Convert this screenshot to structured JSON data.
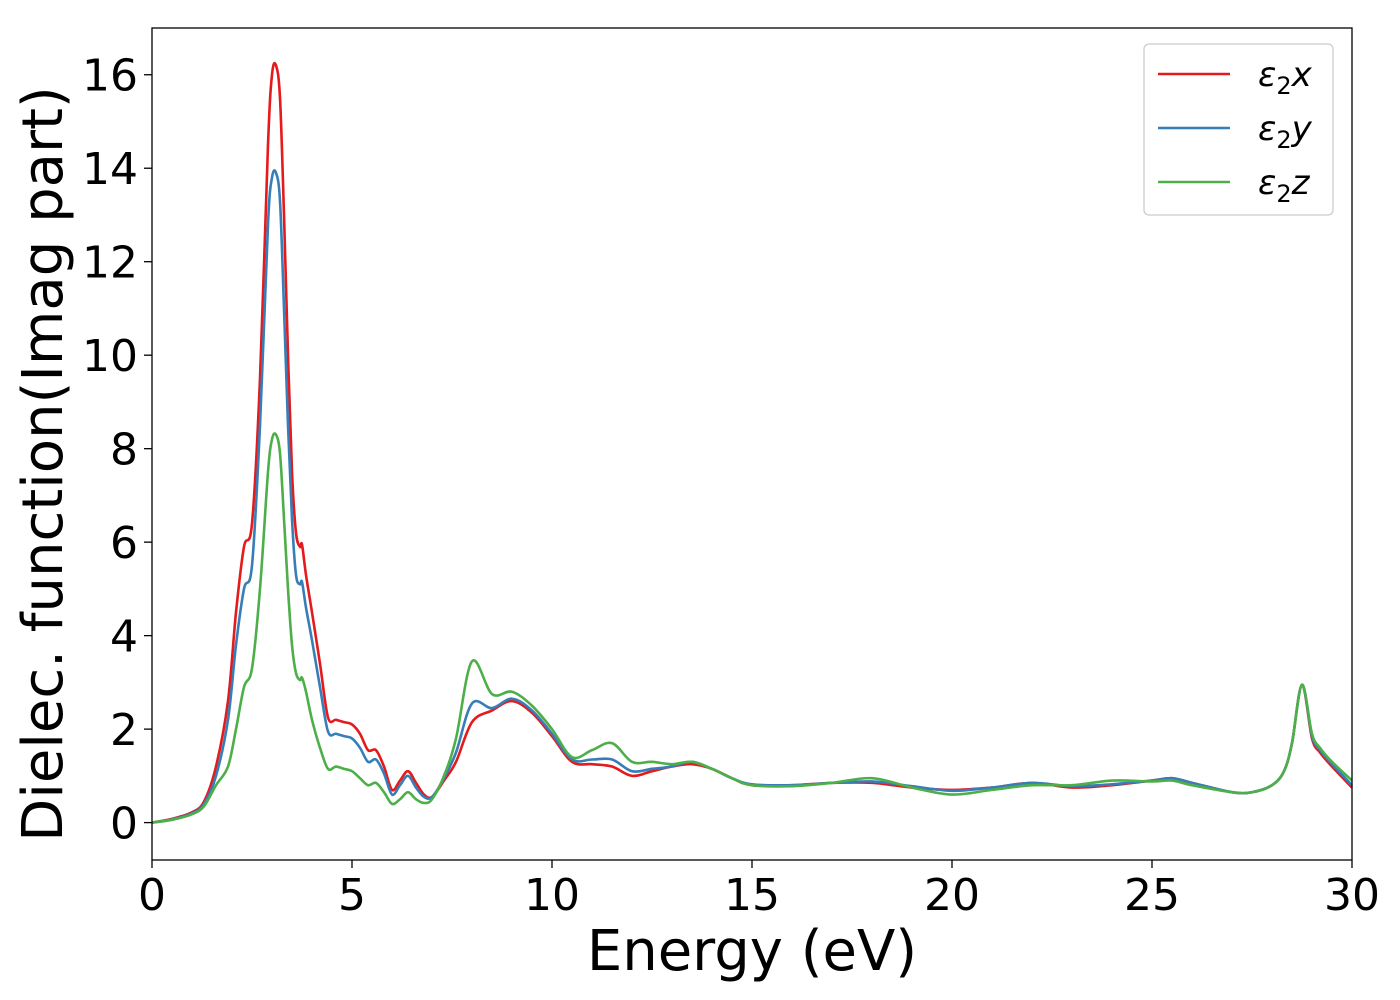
{
  "chart_data": {
    "type": "line",
    "title": "",
    "xlabel": "Energy (eV)",
    "ylabel": "Dielec. function(Imag part)",
    "xlim": [
      0,
      30
    ],
    "ylim": [
      -0.8,
      17
    ],
    "xticks": [
      0,
      5,
      10,
      15,
      20,
      25,
      30
    ],
    "yticks": [
      0,
      2,
      4,
      6,
      8,
      10,
      12,
      14,
      16
    ],
    "grid": false,
    "legend_position": "top-right",
    "series": [
      {
        "name": "ε2x",
        "legend_base": "ε",
        "legend_sub": "2",
        "legend_var": "x",
        "color": "#e41a1c",
        "x": [
          0,
          0.5,
          1,
          1.3,
          1.6,
          1.9,
          2.1,
          2.3,
          2.5,
          2.7,
          2.9,
          3.0,
          3.1,
          3.2,
          3.3,
          3.4,
          3.5,
          3.6,
          3.7,
          3.75,
          3.85,
          4.0,
          4.2,
          4.4,
          4.6,
          4.8,
          5.0,
          5.2,
          5.4,
          5.6,
          5.8,
          6.0,
          6.2,
          6.4,
          6.6,
          6.8,
          7.0,
          7.3,
          7.6,
          8.0,
          8.5,
          9.0,
          9.5,
          10.0,
          10.5,
          11.0,
          11.5,
          12.0,
          12.5,
          13.0,
          13.5,
          14.0,
          14.5,
          15.0,
          16.0,
          17.0,
          18.0,
          19.0,
          20.0,
          21.0,
          22.0,
          23.0,
          24.0,
          25.0,
          25.5,
          26.0,
          27.0,
          27.5,
          28.0,
          28.3,
          28.5,
          28.75,
          29.0,
          29.2,
          29.5,
          30.0
        ],
        "y": [
          0,
          0.08,
          0.22,
          0.45,
          1.2,
          2.6,
          4.5,
          5.9,
          6.4,
          9.5,
          14.5,
          16.0,
          16.2,
          15.5,
          13.0,
          10.0,
          7.5,
          6.2,
          5.9,
          5.95,
          5.3,
          4.5,
          3.4,
          2.25,
          2.2,
          2.15,
          2.1,
          1.9,
          1.55,
          1.55,
          1.2,
          0.7,
          0.9,
          1.1,
          0.85,
          0.6,
          0.55,
          0.9,
          1.3,
          2.15,
          2.4,
          2.6,
          2.35,
          1.85,
          1.3,
          1.25,
          1.2,
          1.0,
          1.1,
          1.2,
          1.25,
          1.15,
          0.95,
          0.8,
          0.8,
          0.85,
          0.85,
          0.75,
          0.7,
          0.75,
          0.85,
          0.75,
          0.8,
          0.9,
          0.95,
          0.85,
          0.65,
          0.65,
          0.8,
          1.1,
          1.7,
          2.95,
          1.8,
          1.5,
          1.2,
          0.75
        ]
      },
      {
        "name": "ε2y",
        "legend_base": "ε",
        "legend_sub": "2",
        "legend_var": "y",
        "color": "#377eb8",
        "x": [
          0,
          0.5,
          1,
          1.3,
          1.6,
          1.9,
          2.1,
          2.3,
          2.5,
          2.7,
          2.9,
          3.0,
          3.1,
          3.2,
          3.3,
          3.4,
          3.5,
          3.6,
          3.7,
          3.75,
          3.85,
          4.0,
          4.2,
          4.4,
          4.6,
          4.8,
          5.0,
          5.2,
          5.4,
          5.6,
          5.8,
          6.0,
          6.2,
          6.4,
          6.6,
          6.8,
          7.0,
          7.3,
          7.6,
          8.0,
          8.5,
          9.0,
          9.5,
          10.0,
          10.5,
          11.0,
          11.5,
          12.0,
          12.5,
          13.0,
          13.5,
          14.0,
          14.5,
          15.0,
          16.0,
          17.0,
          18.0,
          19.0,
          20.0,
          21.0,
          22.0,
          23.0,
          24.0,
          25.0,
          25.5,
          26.0,
          27.0,
          27.5,
          28.0,
          28.3,
          28.5,
          28.75,
          29.0,
          29.2,
          29.5,
          30.0
        ],
        "y": [
          0,
          0.07,
          0.2,
          0.4,
          1.0,
          2.2,
          3.8,
          5.0,
          5.5,
          8.5,
          12.8,
          13.8,
          13.9,
          13.3,
          11.0,
          8.5,
          6.5,
          5.3,
          5.1,
          5.15,
          4.6,
          3.9,
          2.9,
          1.95,
          1.9,
          1.85,
          1.8,
          1.6,
          1.3,
          1.35,
          1.05,
          0.6,
          0.8,
          1.0,
          0.75,
          0.55,
          0.55,
          0.95,
          1.5,
          2.55,
          2.45,
          2.65,
          2.4,
          1.9,
          1.35,
          1.35,
          1.35,
          1.1,
          1.15,
          1.2,
          1.3,
          1.15,
          0.95,
          0.82,
          0.8,
          0.85,
          0.88,
          0.78,
          0.68,
          0.75,
          0.85,
          0.78,
          0.82,
          0.9,
          0.95,
          0.85,
          0.65,
          0.65,
          0.8,
          1.1,
          1.7,
          2.95,
          1.85,
          1.55,
          1.25,
          0.8
        ]
      },
      {
        "name": "ε2z",
        "legend_base": "ε",
        "legend_sub": "2",
        "legend_var": "z",
        "color": "#4daf4a",
        "x": [
          0,
          0.5,
          1,
          1.3,
          1.6,
          1.9,
          2.1,
          2.3,
          2.5,
          2.7,
          2.9,
          3.0,
          3.1,
          3.2,
          3.3,
          3.4,
          3.5,
          3.6,
          3.7,
          3.75,
          3.85,
          4.0,
          4.2,
          4.4,
          4.6,
          4.8,
          5.0,
          5.2,
          5.4,
          5.6,
          5.8,
          6.0,
          6.2,
          6.4,
          6.6,
          6.8,
          7.0,
          7.3,
          7.6,
          8.0,
          8.5,
          9.0,
          9.5,
          10.0,
          10.5,
          11.0,
          11.5,
          12.0,
          12.5,
          13.0,
          13.5,
          14.0,
          14.5,
          15.0,
          16.0,
          17.0,
          18.0,
          19.0,
          20.0,
          21.0,
          22.0,
          23.0,
          24.0,
          25.0,
          25.5,
          26.0,
          27.0,
          27.5,
          28.0,
          28.3,
          28.5,
          28.75,
          29.0,
          29.2,
          29.5,
          30.0
        ],
        "y": [
          0,
          0.06,
          0.18,
          0.35,
          0.8,
          1.2,
          2.0,
          2.9,
          3.3,
          5.0,
          7.5,
          8.2,
          8.3,
          7.9,
          6.5,
          5.0,
          3.8,
          3.2,
          3.05,
          3.1,
          2.8,
          2.2,
          1.6,
          1.15,
          1.2,
          1.15,
          1.1,
          0.95,
          0.8,
          0.85,
          0.65,
          0.4,
          0.5,
          0.65,
          0.5,
          0.42,
          0.5,
          1.0,
          1.8,
          3.45,
          2.75,
          2.8,
          2.5,
          2.0,
          1.4,
          1.55,
          1.7,
          1.3,
          1.3,
          1.25,
          1.3,
          1.15,
          0.95,
          0.8,
          0.78,
          0.85,
          0.95,
          0.75,
          0.6,
          0.7,
          0.8,
          0.8,
          0.9,
          0.88,
          0.9,
          0.8,
          0.65,
          0.65,
          0.8,
          1.1,
          1.7,
          2.95,
          1.9,
          1.6,
          1.3,
          0.9
        ]
      }
    ]
  }
}
